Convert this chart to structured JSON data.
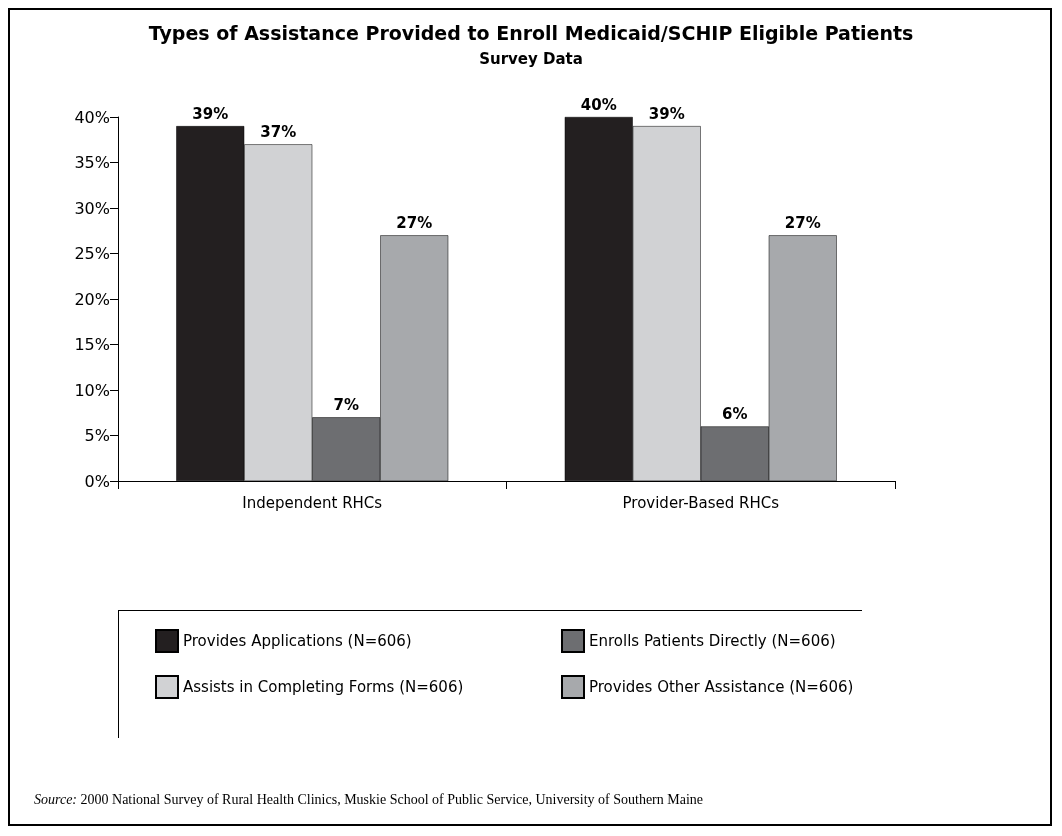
{
  "chart_data": {
    "type": "bar",
    "title": "Types of Assistance Provided to Enroll Medicaid/SCHIP Eligible Patients",
    "subtitle": "Survey Data",
    "categories": [
      "Independent RHCs",
      "Provider-Based RHCs"
    ],
    "series": [
      {
        "name": "Provides Applications (N=606)",
        "color": "#231f20",
        "values": [
          39,
          40
        ],
        "value_labels": [
          "39%",
          "40%"
        ]
      },
      {
        "name": "Assists in Completing Forms (N=606)",
        "color": "#d1d2d4",
        "values": [
          37,
          39
        ],
        "value_labels": [
          "37%",
          "39%"
        ]
      },
      {
        "name": "Enrolls Patients Directly (N=606)",
        "color": "#6d6e71",
        "values": [
          7,
          6
        ],
        "value_labels": [
          "7%",
          "6%"
        ]
      },
      {
        "name": "Provides Other Assistance (N=606)",
        "color": "#a7a9ac",
        "values": [
          27,
          27
        ],
        "value_labels": [
          "27%",
          "27%"
        ]
      }
    ],
    "ylim": [
      0,
      40
    ],
    "yticks": [
      {
        "value": 0,
        "label": "0%"
      },
      {
        "value": 5,
        "label": "5%"
      },
      {
        "value": 10,
        "label": "10%"
      },
      {
        "value": 15,
        "label": "15%"
      },
      {
        "value": 20,
        "label": "20%"
      },
      {
        "value": 25,
        "label": "25%"
      },
      {
        "value": 30,
        "label": "30%"
      },
      {
        "value": 35,
        "label": "35%"
      },
      {
        "value": 40,
        "label": "40%"
      }
    ],
    "grid": false,
    "legend": "bottom",
    "annotations": [
      "Source: 2000 National Survey of Rural Health Clinics, Muskie School of Public Service, University of Southern Maine"
    ]
  }
}
